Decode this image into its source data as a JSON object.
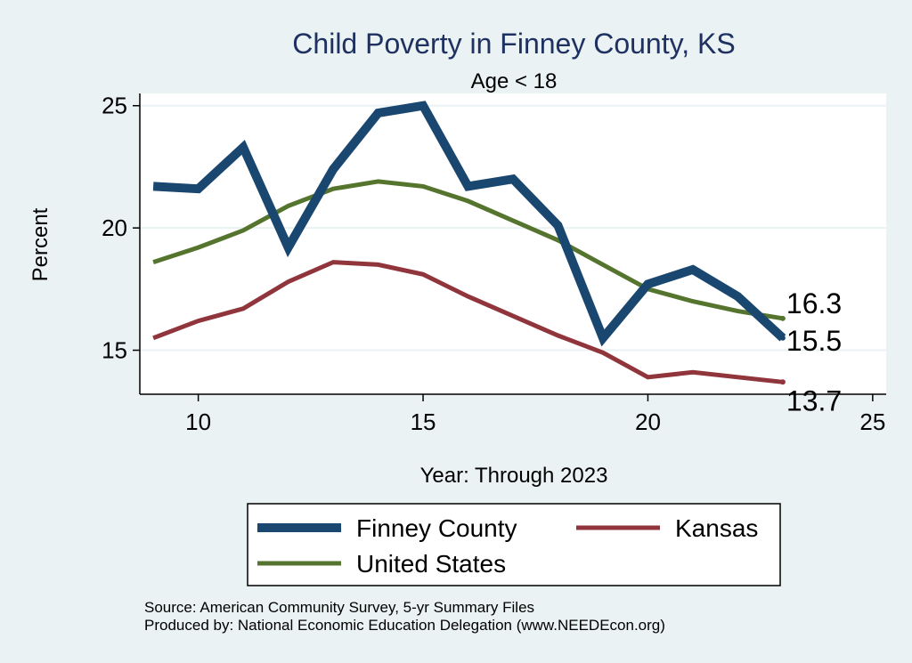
{
  "chart_data": {
    "type": "line",
    "title": "Child Poverty in Finney County, KS",
    "subtitle": "Age < 18",
    "xlabel": "Year: Through 2023",
    "ylabel": "Percent",
    "xlim": [
      8.7,
      25.3
    ],
    "ylim": [
      13.2,
      25.5
    ],
    "xticks": [
      10,
      15,
      20,
      25
    ],
    "yticks": [
      15,
      20,
      25
    ],
    "grid": true,
    "x": [
      9,
      10,
      11,
      12,
      13,
      14,
      15,
      16,
      17,
      18,
      19,
      20,
      21,
      22,
      23
    ],
    "series": [
      {
        "name": "Finney County",
        "color": "#1a476f",
        "values": [
          21.7,
          21.6,
          23.3,
          19.2,
          22.4,
          24.7,
          25.0,
          21.7,
          22.0,
          20.1,
          15.5,
          17.7,
          18.3,
          17.2,
          15.5
        ],
        "end_label": "15.5"
      },
      {
        "name": "Kansas",
        "color": "#90353b",
        "values": [
          15.5,
          16.2,
          16.7,
          17.8,
          18.6,
          18.5,
          18.1,
          17.2,
          16.4,
          15.6,
          14.9,
          13.9,
          14.1,
          13.9,
          13.7
        ],
        "end_label": "13.7"
      },
      {
        "name": "United States",
        "color": "#55752f",
        "values": [
          18.6,
          19.2,
          19.9,
          20.9,
          21.6,
          21.9,
          21.7,
          21.1,
          20.3,
          19.5,
          18.5,
          17.5,
          17.0,
          16.6,
          16.3
        ],
        "end_label": "16.3"
      }
    ],
    "legend": {
      "position": "bottom",
      "items": [
        "Finney County",
        "Kansas",
        "United States"
      ]
    },
    "notes": [
      "Source: American Community Survey, 5-yr Summary Files",
      "Produced by: National Economic Education Delegation (www.NEEDEcon.org)"
    ]
  }
}
